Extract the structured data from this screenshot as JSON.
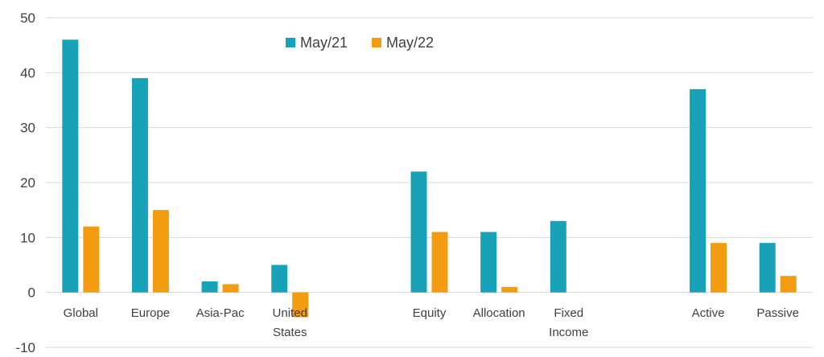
{
  "chart_data": {
    "type": "bar",
    "categories": [
      [
        "Global"
      ],
      [
        "Europe"
      ],
      [
        "Asia-Pac"
      ],
      [
        "United",
        "States"
      ],
      [],
      [
        "Equity"
      ],
      [
        "Allocation"
      ],
      [
        "Fixed",
        "Income"
      ],
      [],
      [
        "Active"
      ],
      [
        "Passive"
      ]
    ],
    "series": [
      {
        "name": "May/21",
        "color": "#17a2b8",
        "values": [
          46,
          39,
          2,
          5,
          null,
          22,
          11,
          13,
          null,
          37,
          9
        ]
      },
      {
        "name": "May/22",
        "color": "#f39c12",
        "values": [
          12,
          15,
          1.5,
          -4.5,
          null,
          11,
          1,
          null,
          null,
          9,
          3
        ]
      }
    ],
    "yticks": [
      "50",
      "40",
      "30",
      "20",
      "10",
      "0",
      "-10"
    ],
    "ylim": [
      -10,
      50
    ],
    "grid": true,
    "legend_position": "top-center"
  }
}
